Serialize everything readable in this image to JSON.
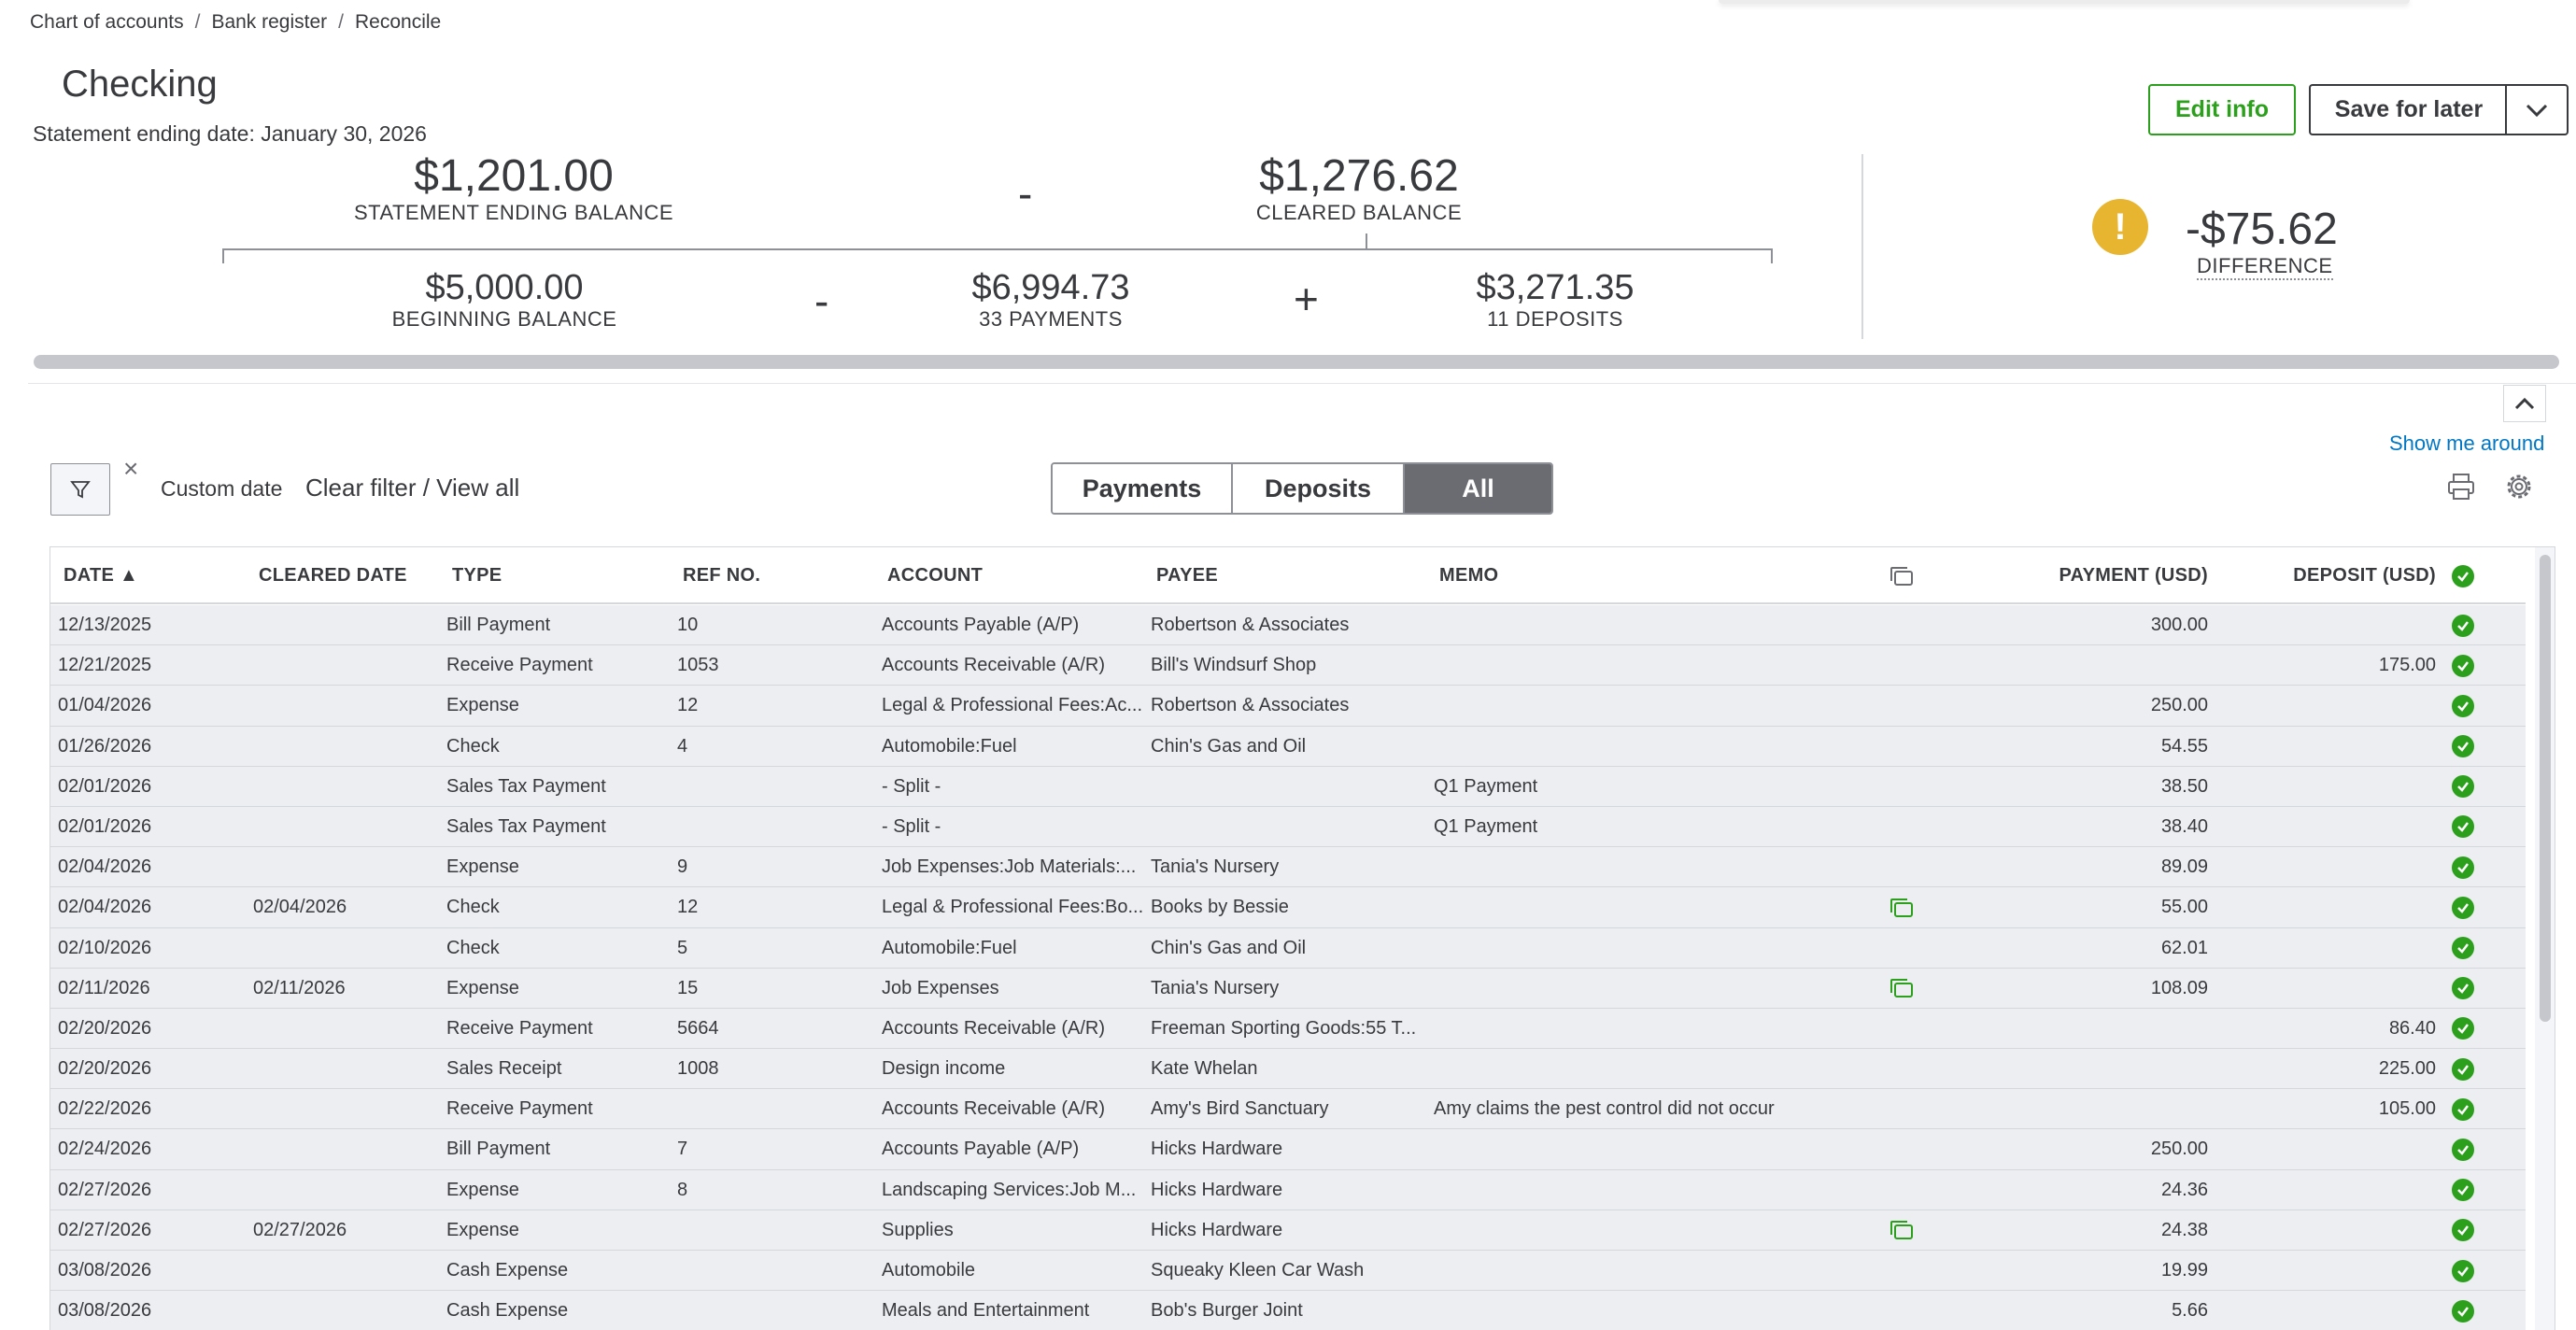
{
  "breadcrumb": {
    "items": [
      "Chart of accounts",
      "Bank register",
      "Reconcile"
    ],
    "separator": "/"
  },
  "header": {
    "title": "Checking",
    "statement_ending_date": "Statement ending date: January 30, 2026",
    "edit_info_label": "Edit info",
    "save_for_later_label": "Save for later"
  },
  "summary": {
    "statement_ending_balance": "$1,201.00",
    "statement_ending_balance_label": "STATEMENT ENDING BALANCE",
    "minus_op": "-",
    "cleared_balance": "$1,276.62",
    "cleared_balance_label": "CLEARED BALANCE",
    "beginning_balance": "$5,000.00",
    "beginning_balance_label": "BEGINNING BALANCE",
    "payments_total": "$6,994.73",
    "payments_label": "33 PAYMENTS",
    "plus_op": "+",
    "deposits_total": "$3,271.35",
    "deposits_label": "11 DEPOSITS",
    "difference": "-$75.62",
    "difference_label": "DIFFERENCE",
    "warning_symbol": "!"
  },
  "toolbar": {
    "show_me_around": "Show me around",
    "clear_symbol": "×",
    "custom_date": "Custom date",
    "clear_filter": "Clear filter / View all",
    "tabs": [
      {
        "label": "Payments",
        "active": false
      },
      {
        "label": "Deposits",
        "active": false
      },
      {
        "label": "All",
        "active": true
      }
    ]
  },
  "table": {
    "columns": {
      "date": "DATE ▲",
      "cleared_date": "CLEARED DATE",
      "type": "TYPE",
      "ref_no": "REF NO.",
      "account": "ACCOUNT",
      "payee": "PAYEE",
      "memo": "MEMO",
      "payment": "PAYMENT (USD)",
      "deposit": "DEPOSIT (USD)"
    },
    "rows": [
      {
        "date": "12/13/2025",
        "cleared": "",
        "type": "Bill Payment",
        "ref": "10",
        "account": "Accounts Payable (A/P)",
        "payee": "Robertson & Associates",
        "memo": "",
        "attach": false,
        "payment": "300.00",
        "deposit": ""
      },
      {
        "date": "12/21/2025",
        "cleared": "",
        "type": "Receive Payment",
        "ref": "1053",
        "account": "Accounts Receivable (A/R)",
        "payee": "Bill's Windsurf Shop",
        "memo": "",
        "attach": false,
        "payment": "",
        "deposit": "175.00"
      },
      {
        "date": "01/04/2026",
        "cleared": "",
        "type": "Expense",
        "ref": "12",
        "account": "Legal & Professional Fees:Ac...",
        "payee": "Robertson & Associates",
        "memo": "",
        "attach": false,
        "payment": "250.00",
        "deposit": ""
      },
      {
        "date": "01/26/2026",
        "cleared": "",
        "type": "Check",
        "ref": "4",
        "account": "Automobile:Fuel",
        "payee": "Chin's Gas and Oil",
        "memo": "",
        "attach": false,
        "payment": "54.55",
        "deposit": ""
      },
      {
        "date": "02/01/2026",
        "cleared": "",
        "type": "Sales Tax Payment",
        "ref": "",
        "account": "- Split -",
        "payee": "",
        "memo": "Q1 Payment",
        "attach": false,
        "payment": "38.50",
        "deposit": ""
      },
      {
        "date": "02/01/2026",
        "cleared": "",
        "type": "Sales Tax Payment",
        "ref": "",
        "account": "- Split -",
        "payee": "",
        "memo": "Q1 Payment",
        "attach": false,
        "payment": "38.40",
        "deposit": ""
      },
      {
        "date": "02/04/2026",
        "cleared": "",
        "type": "Expense",
        "ref": "9",
        "account": "Job Expenses:Job Materials:...",
        "payee": "Tania's Nursery",
        "memo": "",
        "attach": false,
        "payment": "89.09",
        "deposit": ""
      },
      {
        "date": "02/04/2026",
        "cleared": "02/04/2026",
        "type": "Check",
        "ref": "12",
        "account": "Legal & Professional Fees:Bo...",
        "payee": "Books by Bessie",
        "memo": "",
        "attach": true,
        "payment": "55.00",
        "deposit": ""
      },
      {
        "date": "02/10/2026",
        "cleared": "",
        "type": "Check",
        "ref": "5",
        "account": "Automobile:Fuel",
        "payee": "Chin's Gas and Oil",
        "memo": "",
        "attach": false,
        "payment": "62.01",
        "deposit": ""
      },
      {
        "date": "02/11/2026",
        "cleared": "02/11/2026",
        "type": "Expense",
        "ref": "15",
        "account": "Job Expenses",
        "payee": "Tania's Nursery",
        "memo": "",
        "attach": true,
        "payment": "108.09",
        "deposit": ""
      },
      {
        "date": "02/20/2026",
        "cleared": "",
        "type": "Receive Payment",
        "ref": "5664",
        "account": "Accounts Receivable (A/R)",
        "payee": "Freeman Sporting Goods:55 T...",
        "memo": "",
        "attach": false,
        "payment": "",
        "deposit": "86.40"
      },
      {
        "date": "02/20/2026",
        "cleared": "",
        "type": "Sales Receipt",
        "ref": "1008",
        "account": "Design income",
        "payee": "Kate Whelan",
        "memo": "",
        "attach": false,
        "payment": "",
        "deposit": "225.00"
      },
      {
        "date": "02/22/2026",
        "cleared": "",
        "type": "Receive Payment",
        "ref": "",
        "account": "Accounts Receivable (A/R)",
        "payee": "Amy's Bird Sanctuary",
        "memo": "Amy claims the pest control did not occur",
        "attach": false,
        "payment": "",
        "deposit": "105.00"
      },
      {
        "date": "02/24/2026",
        "cleared": "",
        "type": "Bill Payment",
        "ref": "7",
        "account": "Accounts Payable (A/P)",
        "payee": "Hicks Hardware",
        "memo": "",
        "attach": false,
        "payment": "250.00",
        "deposit": ""
      },
      {
        "date": "02/27/2026",
        "cleared": "",
        "type": "Expense",
        "ref": "8",
        "account": "Landscaping Services:Job M...",
        "payee": "Hicks Hardware",
        "memo": "",
        "attach": false,
        "payment": "24.36",
        "deposit": ""
      },
      {
        "date": "02/27/2026",
        "cleared": "02/27/2026",
        "type": "Expense",
        "ref": "",
        "account": "Supplies",
        "payee": "Hicks Hardware",
        "memo": "",
        "attach": true,
        "payment": "24.38",
        "deposit": ""
      },
      {
        "date": "03/08/2026",
        "cleared": "",
        "type": "Cash Expense",
        "ref": "",
        "account": "Automobile",
        "payee": "Squeaky Kleen Car Wash",
        "memo": "",
        "attach": false,
        "payment": "19.99",
        "deposit": ""
      },
      {
        "date": "03/08/2026",
        "cleared": "",
        "type": "Cash Expense",
        "ref": "",
        "account": "Meals and Entertainment",
        "payee": "Bob's Burger Joint",
        "memo": "",
        "attach": false,
        "payment": "5.66",
        "deposit": ""
      }
    ]
  },
  "colors": {
    "accent_green": "#2ca01c",
    "warning_yellow": "#e8b530",
    "link_blue": "#0077c5",
    "row_bg": "#eceef1"
  },
  "icons": {
    "filter": "funnel-icon",
    "print": "printer-icon",
    "settings": "gear-icon",
    "attachment": "attachment-icon",
    "cleared": "check-circle-icon",
    "collapse": "chevron-up-icon",
    "dropdown": "chevron-down-icon"
  }
}
